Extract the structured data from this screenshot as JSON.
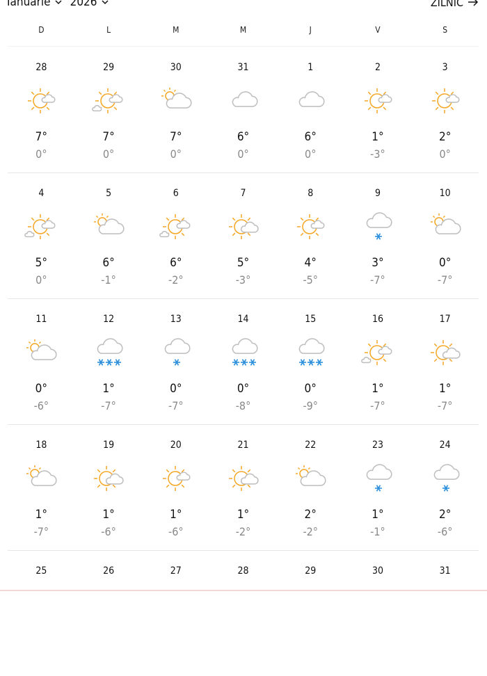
{
  "header": {
    "month": "Ianuarie",
    "year": "2026",
    "view_label": "ZILNIC"
  },
  "weekdays": [
    "D",
    "L",
    "M",
    "M",
    "J",
    "V",
    "S"
  ],
  "colors": {
    "sun": "#f5a623",
    "cloud": "#bdbdbd",
    "snow": "#2b8fdc",
    "low_temp": "#888888"
  },
  "weeks": [
    [
      {
        "day": "28",
        "icon": "sun-small-cloud",
        "high": "7°",
        "low": "0°"
      },
      {
        "day": "29",
        "icon": "sun-clouds",
        "high": "7°",
        "low": "0°"
      },
      {
        "day": "30",
        "icon": "partly-cloudy",
        "high": "7°",
        "low": "0°"
      },
      {
        "day": "31",
        "icon": "cloud",
        "high": "6°",
        "low": "0°"
      },
      {
        "day": "1",
        "icon": "cloud",
        "high": "6°",
        "low": "0°"
      },
      {
        "day": "2",
        "icon": "sun-small-cloud",
        "high": "1°",
        "low": "-3°"
      },
      {
        "day": "3",
        "icon": "sun-small-cloud",
        "high": "2°",
        "low": "0°"
      }
    ],
    [
      {
        "day": "4",
        "icon": "sun-clouds",
        "high": "5°",
        "low": "0°"
      },
      {
        "day": "5",
        "icon": "partly-cloudy",
        "high": "6°",
        "low": "-1°"
      },
      {
        "day": "6",
        "icon": "sun-clouds",
        "high": "6°",
        "low": "-2°"
      },
      {
        "day": "7",
        "icon": "sun-cloud",
        "high": "5°",
        "low": "-3°"
      },
      {
        "day": "8",
        "icon": "sun-small-cloud",
        "high": "4°",
        "low": "-5°"
      },
      {
        "day": "9",
        "icon": "light-snow",
        "high": "3°",
        "low": "-7°"
      },
      {
        "day": "10",
        "icon": "partly-cloudy",
        "high": "0°",
        "low": "-7°"
      }
    ],
    [
      {
        "day": "11",
        "icon": "partly-cloudy",
        "high": "0°",
        "low": "-6°"
      },
      {
        "day": "12",
        "icon": "heavy-snow",
        "high": "1°",
        "low": "-7°"
      },
      {
        "day": "13",
        "icon": "light-snow",
        "high": "0°",
        "low": "-7°"
      },
      {
        "day": "14",
        "icon": "heavy-snow",
        "high": "0°",
        "low": "-8°"
      },
      {
        "day": "15",
        "icon": "heavy-snow",
        "high": "0°",
        "low": "-9°"
      },
      {
        "day": "16",
        "icon": "sun-clouds",
        "high": "1°",
        "low": "-7°"
      },
      {
        "day": "17",
        "icon": "sun-cloud",
        "high": "1°",
        "low": "-7°"
      }
    ],
    [
      {
        "day": "18",
        "icon": "partly-cloudy",
        "high": "1°",
        "low": "-7°"
      },
      {
        "day": "19",
        "icon": "sun-cloud",
        "high": "1°",
        "low": "-6°"
      },
      {
        "day": "20",
        "icon": "sun-small-cloud",
        "high": "1°",
        "low": "-6°"
      },
      {
        "day": "21",
        "icon": "sun-cloud",
        "high": "1°",
        "low": "-2°"
      },
      {
        "day": "22",
        "icon": "partly-cloudy",
        "high": "2°",
        "low": "-2°"
      },
      {
        "day": "23",
        "icon": "light-snow",
        "high": "1°",
        "low": "-1°"
      },
      {
        "day": "24",
        "icon": "light-snow",
        "high": "2°",
        "low": "-6°"
      }
    ],
    [
      {
        "day": "25"
      },
      {
        "day": "26"
      },
      {
        "day": "27"
      },
      {
        "day": "28"
      },
      {
        "day": "29"
      },
      {
        "day": "30"
      },
      {
        "day": "31"
      }
    ]
  ]
}
